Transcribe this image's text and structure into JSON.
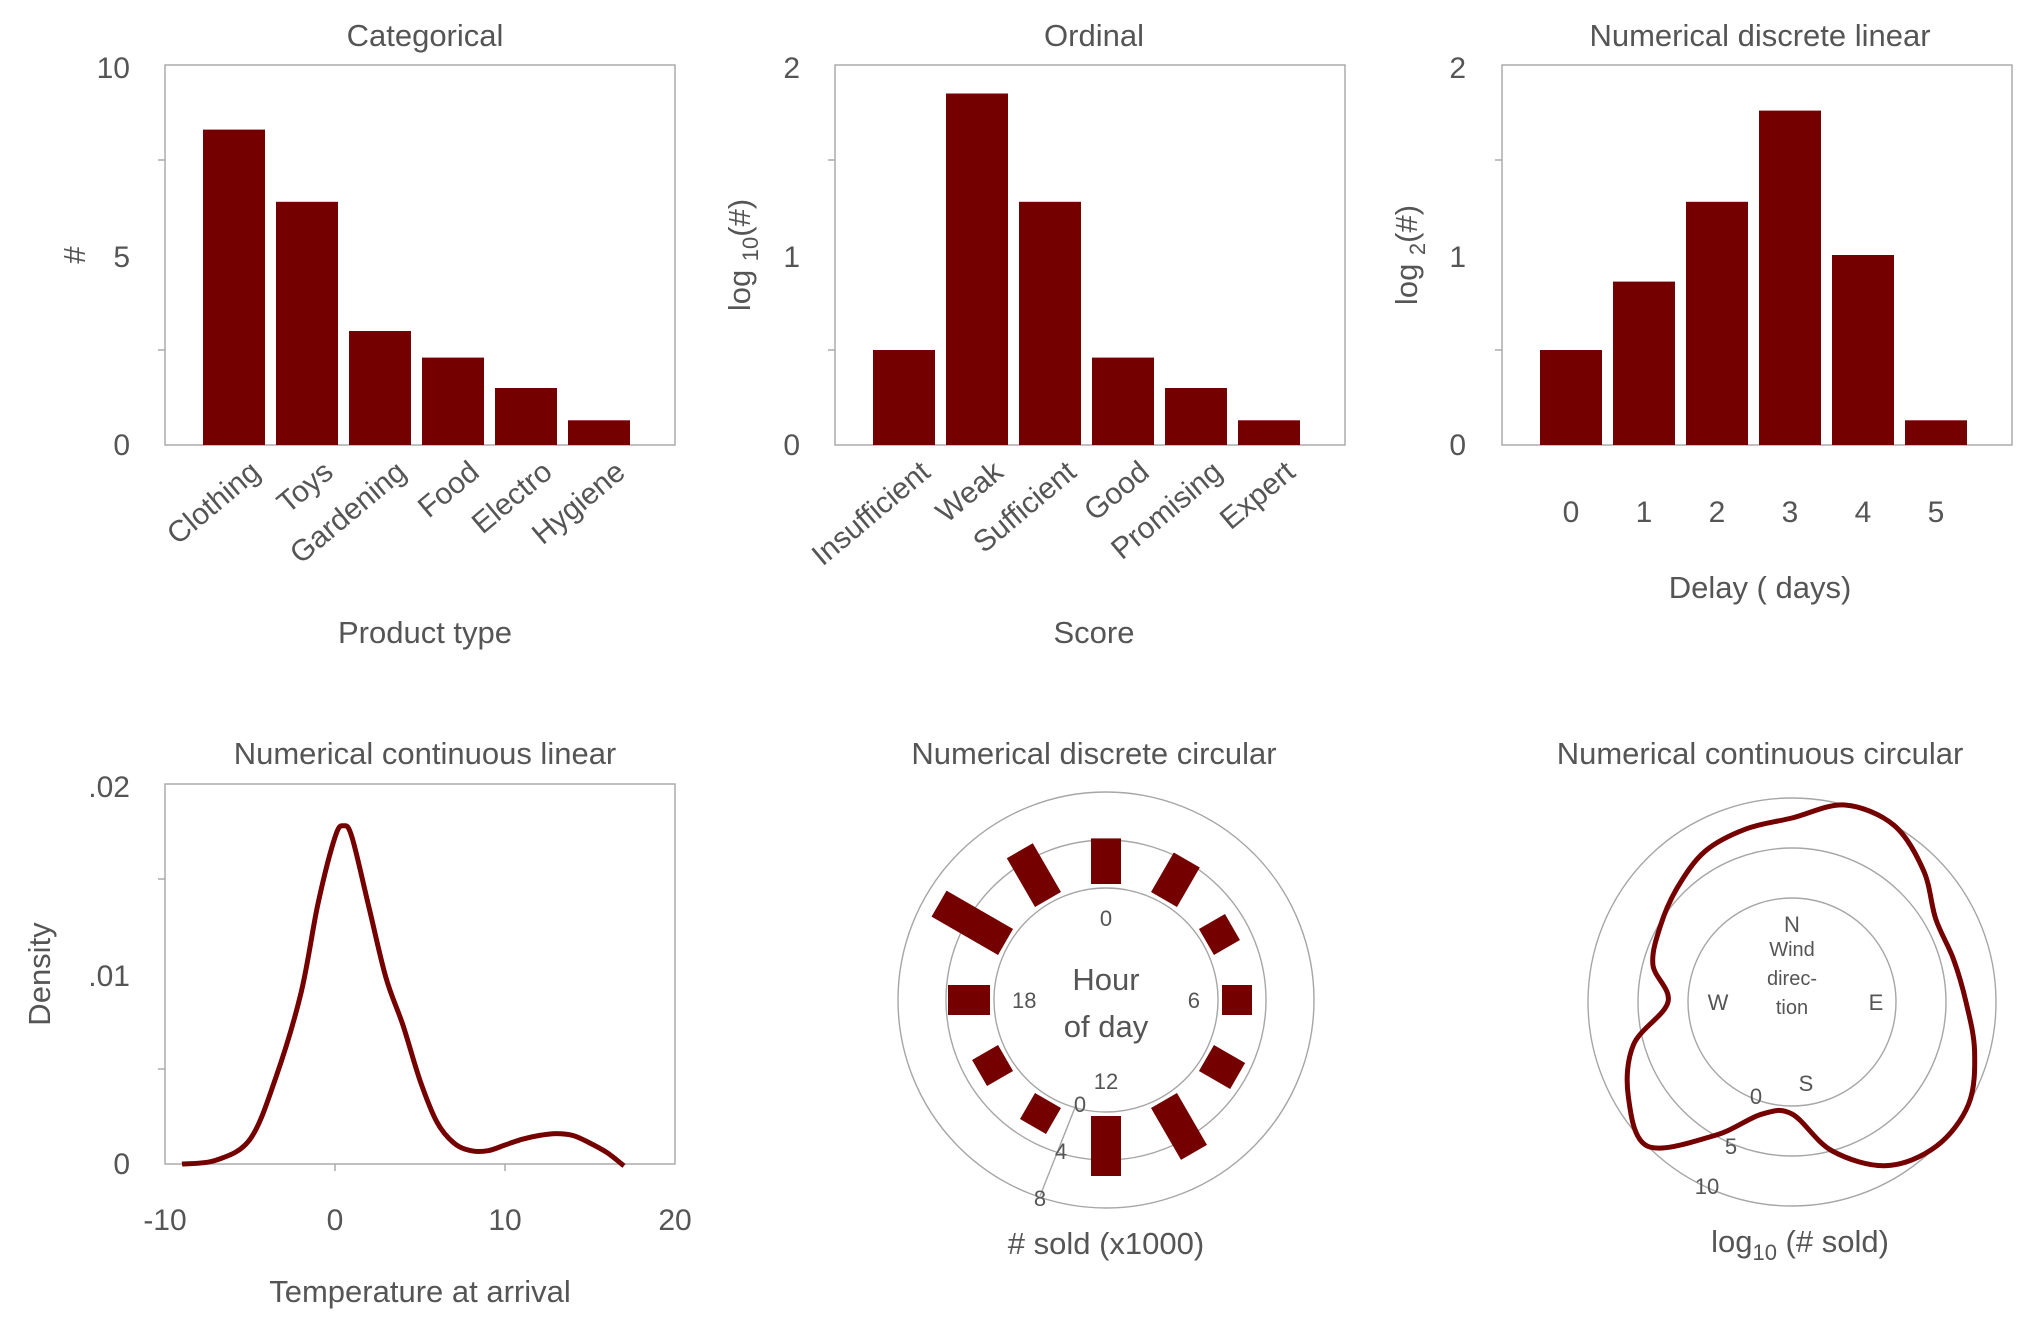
{
  "colors": {
    "bar": "#750000",
    "axis": "#a6a6a6",
    "text": "#555555"
  },
  "chart_data": [
    {
      "type": "bar",
      "title": "Categorical",
      "categories": [
        "Clothing",
        "Toys",
        "Gardening",
        "Food",
        "Electro",
        "Hygiene"
      ],
      "values": [
        8.3,
        6.4,
        3.0,
        2.3,
        1.5,
        0.65
      ],
      "xlabel": "Product type",
      "ylabel": "#",
      "ylim": [
        0,
        10
      ],
      "yticks": [
        "0",
        "5",
        "10"
      ],
      "rotated_labels": true
    },
    {
      "type": "bar",
      "title": "Ordinal",
      "categories": [
        "Insufficient",
        "Weak",
        "Sufficient",
        "Good",
        "Promising",
        "Expert"
      ],
      "values": [
        0.5,
        1.85,
        1.28,
        0.46,
        0.3,
        0.13
      ],
      "xlabel": "Score",
      "ylabel_pre": "log ",
      "ylabel_sub": "10",
      "ylabel_post": "(#)",
      "ylim": [
        0,
        2
      ],
      "yticks": [
        "0",
        "1",
        "2"
      ],
      "rotated_labels": true
    },
    {
      "type": "bar",
      "title": "Numerical discrete  linear",
      "categories": [
        "0",
        "1",
        "2",
        "3",
        "4",
        "5"
      ],
      "values": [
        0.5,
        0.86,
        1.28,
        1.76,
        1.0,
        0.13
      ],
      "xlabel": "Delay ( days)",
      "ylabel_pre": "log ",
      "ylabel_sub": "2",
      "ylabel_post": "(#)",
      "ylim": [
        0,
        2
      ],
      "yticks": [
        "0",
        "1",
        "2"
      ],
      "rotated_labels": false
    },
    {
      "type": "line",
      "title": "Numerical continuous linear",
      "x": [
        -9,
        -7,
        -5,
        -3.5,
        -2,
        -1,
        0,
        0.5,
        1,
        2,
        3,
        4,
        5,
        6,
        7,
        8,
        9,
        10,
        11,
        12,
        13,
        14,
        15,
        16,
        17
      ],
      "y": [
        0.0,
        0.0002,
        0.0013,
        0.0045,
        0.009,
        0.0137,
        0.0172,
        0.0178,
        0.0172,
        0.0135,
        0.0098,
        0.0073,
        0.0044,
        0.0022,
        0.0011,
        0.0007,
        0.0007,
        0.001,
        0.0013,
        0.0015,
        0.0016,
        0.0015,
        0.0011,
        0.0006,
        -0.0001
      ],
      "xlabel": "Temperature at arrival",
      "ylabel": "Density",
      "xlim": [
        -10,
        20
      ],
      "xticks": [
        "-10",
        "0",
        "10",
        "20"
      ],
      "ylim": [
        0,
        0.02
      ],
      "yticks": [
        "0",
        ".01",
        ".02"
      ]
    },
    {
      "type": "bar",
      "polar": true,
      "title": "Numerical discrete circular",
      "categories": [
        "0",
        "2",
        "4",
        "6",
        "8",
        "10",
        "12",
        "14",
        "16",
        "18",
        "20",
        "22"
      ],
      "values": [
        3.8,
        3.8,
        2.5,
        2.5,
        3.0,
        5.0,
        5.0,
        2.5,
        2.5,
        3.5,
        6.4,
        4.7
      ],
      "center_label_1": "Hour",
      "center_label_2": "of day",
      "dial_labels": [
        "0",
        "6",
        "12",
        "18"
      ],
      "radial_ticks": [
        "0",
        "4",
        "8"
      ],
      "rlim": [
        0,
        8
      ],
      "xlabel": "# sold (x1000)"
    },
    {
      "type": "line",
      "polar": true,
      "title": "Numerical continuous  circular",
      "theta_deg": [
        0,
        15,
        30,
        45,
        60,
        75,
        90,
        105,
        120,
        135,
        150,
        165,
        180,
        195,
        210,
        225,
        240,
        255,
        270,
        285,
        300,
        315,
        330,
        345
      ],
      "r": [
        8.0,
        10.0,
        10.0,
        8.2,
        6.2,
        6.3,
        7.0,
        8.5,
        10.0,
        10.0,
        8.5,
        5.0,
        0.8,
        1.2,
        5.0,
        10.0,
        8.5,
        6.0,
        2.0,
        4.0,
        4.8,
        5.8,
        7.0,
        7.5
      ],
      "center_label_1": "Wind",
      "center_label_2": "direc-",
      "center_label_3": "tion",
      "compass_labels": [
        "N",
        "E",
        "S",
        "W"
      ],
      "radial_ticks": [
        "0",
        "5",
        "10"
      ],
      "rlim": [
        0,
        10
      ],
      "xlabel_pre": "log",
      "xlabel_sub": "10",
      "xlabel_post": " (# sold)"
    }
  ]
}
